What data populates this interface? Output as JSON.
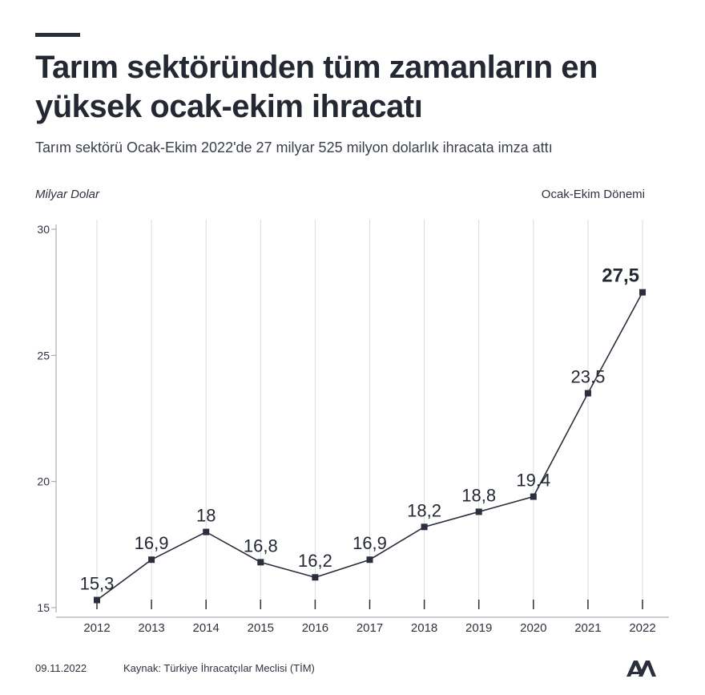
{
  "header": {
    "title": "Tarım sektöründen tüm zamanların en yüksek ocak-ekim ihracatı",
    "subtitle": "Tarım sektörü Ocak-Ekim 2022'de 27 milyar 525 milyon dolarlık ihracata imza attı"
  },
  "chart_data": {
    "type": "line",
    "ylabel": "Milyar Dolar",
    "legend_note": "Ocak-Ekim Dönemi",
    "x": [
      "2012",
      "2013",
      "2014",
      "2015",
      "2016",
      "2017",
      "2018",
      "2019",
      "2020",
      "2021",
      "2022"
    ],
    "values": [
      15.3,
      16.9,
      18.0,
      16.8,
      16.2,
      16.9,
      18.2,
      18.8,
      19.4,
      23.5,
      27.5
    ],
    "value_labels": [
      "15,3",
      "16,9",
      "18",
      "16,8",
      "16,2",
      "16,9",
      "18,2",
      "18,8",
      "19,4",
      "23,5",
      "27,5"
    ],
    "yticks": [
      15,
      20,
      25,
      30
    ],
    "ylim": [
      15,
      30
    ],
    "grid": "vertical",
    "line_color": "#2b2f3d",
    "grid_color": "#d9dbe0"
  },
  "footer": {
    "date": "09.11.2022",
    "source": "Kaynak: Türkiye İhracatçılar Meclisi (TİM)",
    "logo_icon": "aa-logo-icon"
  }
}
